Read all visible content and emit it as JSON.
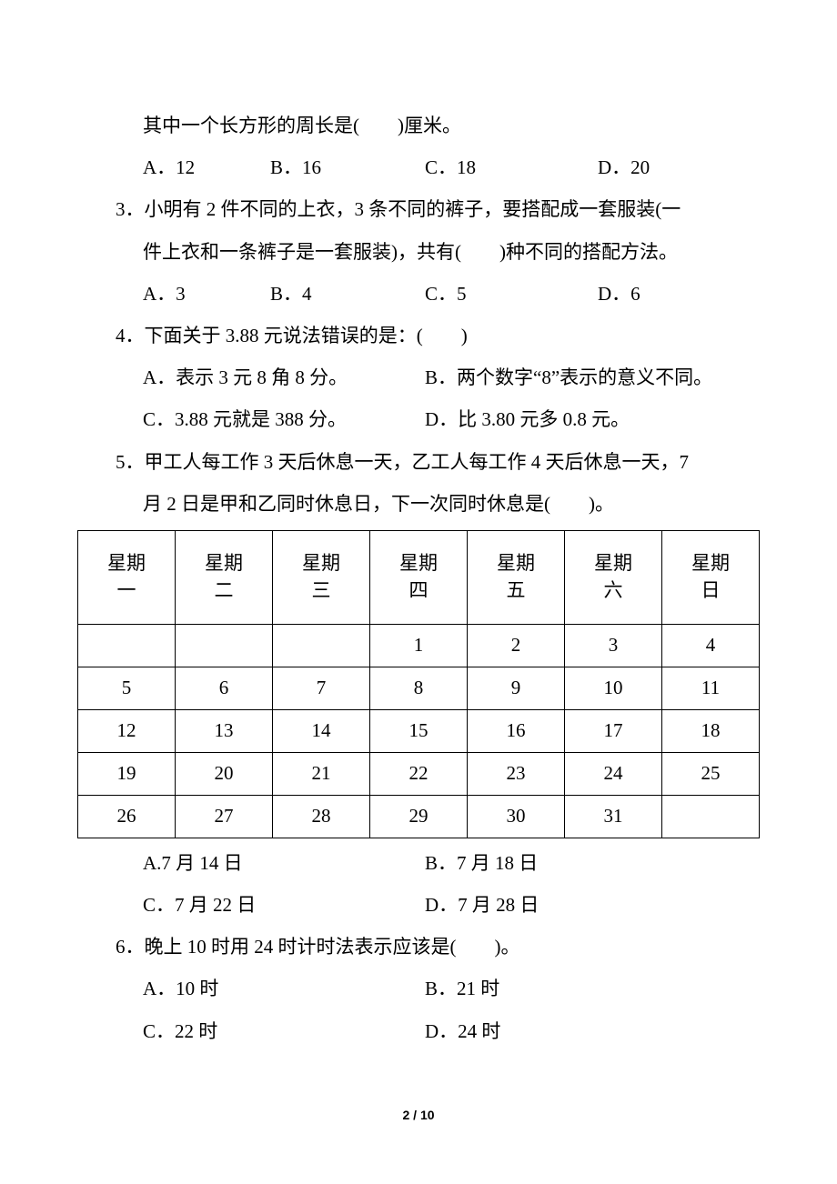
{
  "q2": {
    "cont": "其中一个长方形的周长是(　　)厘米。",
    "A": "A．12",
    "B": "B．16",
    "C": "C．18",
    "D": "D．20"
  },
  "q3": {
    "l1": "3．小明有 2 件不同的上衣，3 条不同的裤子，要搭配成一套服装(一",
    "l2": "件上衣和一条裤子是一套服装)，共有(　　)种不同的搭配方法。",
    "A": "A．3",
    "B": "B．4",
    "C": "C．5",
    "D": "D．6"
  },
  "q4": {
    "l1": "4．下面关于 3.88 元说法错误的是：(　　)",
    "A": "A．表示 3 元 8 角 8 分。",
    "B": "B．两个数字“8”表示的意义不同。",
    "C": "C．3.88 元就是 388 分。",
    "D": "D．比 3.80 元多 0.8 元。"
  },
  "q5": {
    "l1": "5．甲工人每工作 3 天后休息一天，乙工人每工作 4 天后休息一天，7",
    "l2": "月 2 日是甲和乙同时休息日，下一次同时休息是(　　)。",
    "A": "A.7 月 14 日",
    "B": "B．7 月 18 日",
    "C": "C．7 月 22 日",
    "D": "D．7 月 28 日"
  },
  "q6": {
    "l1": "6．晚上 10 时用 24 时计时法表示应该是(　　)。",
    "A": "A．10 时",
    "B": "B．21 时",
    "C": "C．22 时",
    "D": "D．24 时"
  },
  "cal": {
    "hdr": [
      "星期\n一",
      "星期\n二",
      "星期\n三",
      "星期\n四",
      "星期\n五",
      "星期\n六",
      "星期\n日"
    ],
    "rows": [
      [
        "",
        "",
        "",
        "1",
        "2",
        "3",
        "4"
      ],
      [
        "5",
        "6",
        "7",
        "8",
        "9",
        "10",
        "11"
      ],
      [
        "12",
        "13",
        "14",
        "15",
        "16",
        "17",
        "18"
      ],
      [
        "19",
        "20",
        "21",
        "22",
        "23",
        "24",
        "25"
      ],
      [
        "26",
        "27",
        "28",
        "29",
        "30",
        "31",
        ""
      ]
    ]
  },
  "pgnum": "2 / 10"
}
